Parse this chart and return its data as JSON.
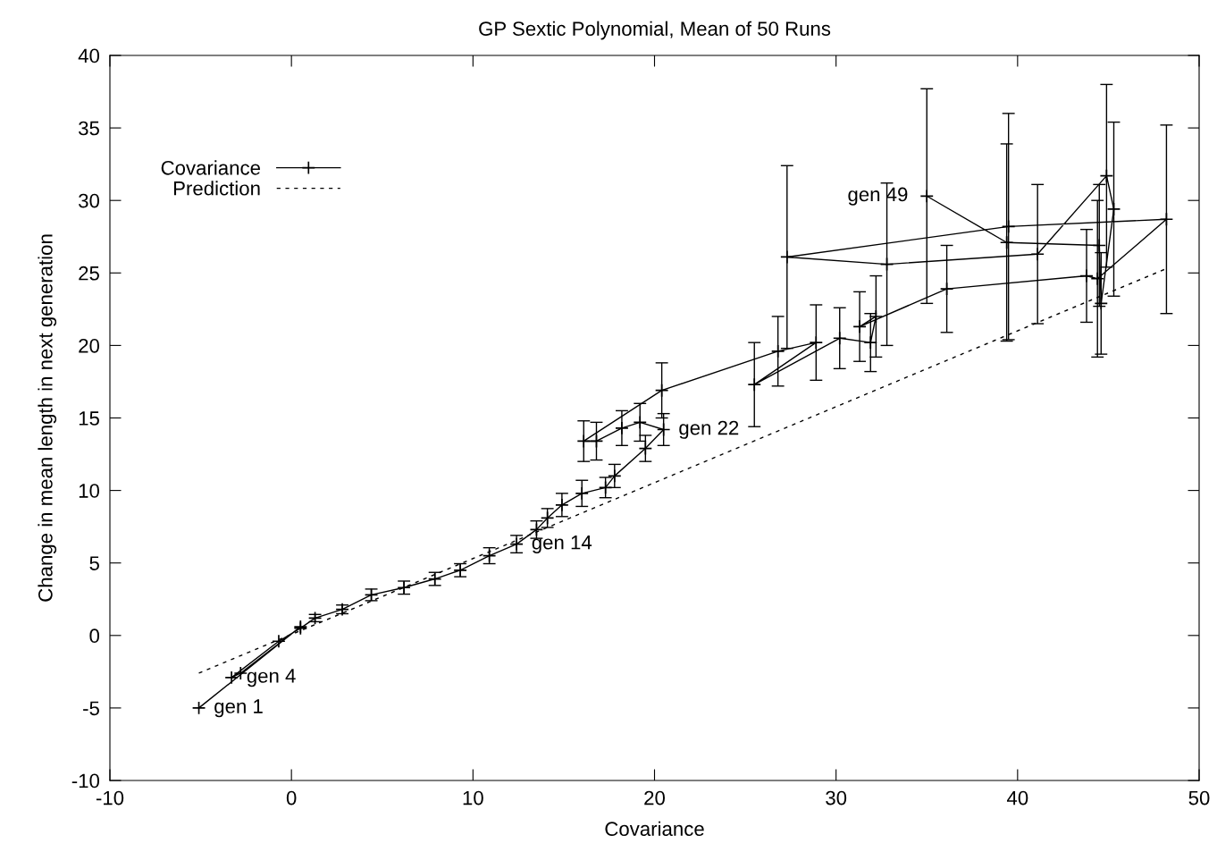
{
  "chart_data": {
    "type": "line",
    "title": "GP Sextic Polynomial, Mean of 50 Runs",
    "xlabel": "Covariance",
    "ylabel": "Change in mean length in next generation",
    "xlim": [
      -10,
      50
    ],
    "xticks": [
      -10,
      0,
      10,
      20,
      30,
      40,
      50
    ],
    "ylim": [
      -10,
      40
    ],
    "yticks": [
      -10,
      -5,
      0,
      5,
      10,
      15,
      20,
      25,
      30,
      35,
      40
    ],
    "grid": false,
    "legend": "top left",
    "series": [
      {
        "name": "Covariance",
        "color": "#000000",
        "marker": "cross",
        "line_style": "solid",
        "x": [
          -5.1,
          0.5,
          -2.8,
          -3.3,
          -0.7,
          0.5,
          1.3,
          2.8,
          4.4,
          6.2,
          7.9,
          9.3,
          10.9,
          12.4,
          13.5,
          14.1,
          14.9,
          16.0,
          17.3,
          17.8,
          19.5,
          20.5,
          19.2,
          18.2,
          16.8,
          16.1,
          20.4,
          26.8,
          28.9,
          25.5,
          30.2,
          31.9,
          32.2,
          31.3,
          36.1,
          43.8,
          44.4,
          48.2,
          39.5,
          27.3,
          32.8,
          41.1,
          44.9,
          45.3,
          44.6,
          44.5,
          39.4,
          35.0
        ],
        "values": [
          -5.0,
          0.6,
          -2.6,
          -2.9,
          -0.4,
          0.5,
          1.2,
          1.8,
          2.8,
          3.3,
          3.9,
          4.5,
          5.5,
          6.3,
          7.3,
          8.1,
          9.0,
          9.8,
          10.2,
          11.0,
          12.9,
          14.2,
          14.7,
          14.3,
          13.4,
          13.4,
          16.9,
          19.6,
          20.2,
          17.3,
          20.5,
          20.2,
          22.0,
          21.3,
          23.9,
          24.8,
          24.6,
          28.7,
          28.2,
          26.1,
          25.6,
          26.3,
          31.7,
          29.4,
          22.9,
          26.9,
          27.1,
          30.3
        ],
        "errors": [
          null,
          null,
          null,
          null,
          null,
          null,
          0.25,
          0.3,
          0.4,
          0.45,
          0.45,
          0.45,
          0.55,
          0.6,
          0.6,
          0.65,
          0.8,
          0.9,
          0.7,
          0.8,
          0.9,
          1.1,
          1.3,
          1.2,
          1.3,
          1.4,
          1.9,
          2.4,
          2.6,
          2.9,
          2.1,
          2.0,
          2.8,
          2.4,
          3.0,
          3.2,
          5.4,
          6.5,
          7.8,
          6.3,
          5.6,
          4.8,
          6.3,
          6.0,
          3.5,
          4.2,
          6.8,
          7.4
        ]
      },
      {
        "name": "Prediction",
        "color": "#000000",
        "marker": "none",
        "line_style": "dashed",
        "x": [
          -5.1,
          48.2
        ],
        "values": [
          -2.6,
          25.3
        ]
      }
    ],
    "annotations": [
      {
        "text": "gen 1",
        "x": -5.1,
        "y": -5.0
      },
      {
        "text": "gen 4",
        "x": -3.3,
        "y": -2.9
      },
      {
        "text": "gen 14",
        "x": 12.4,
        "y": 6.3
      },
      {
        "text": "gen 22",
        "x": 20.5,
        "y": 14.2
      },
      {
        "text": "gen 49",
        "x": 35.0,
        "y": 30.3
      }
    ]
  }
}
